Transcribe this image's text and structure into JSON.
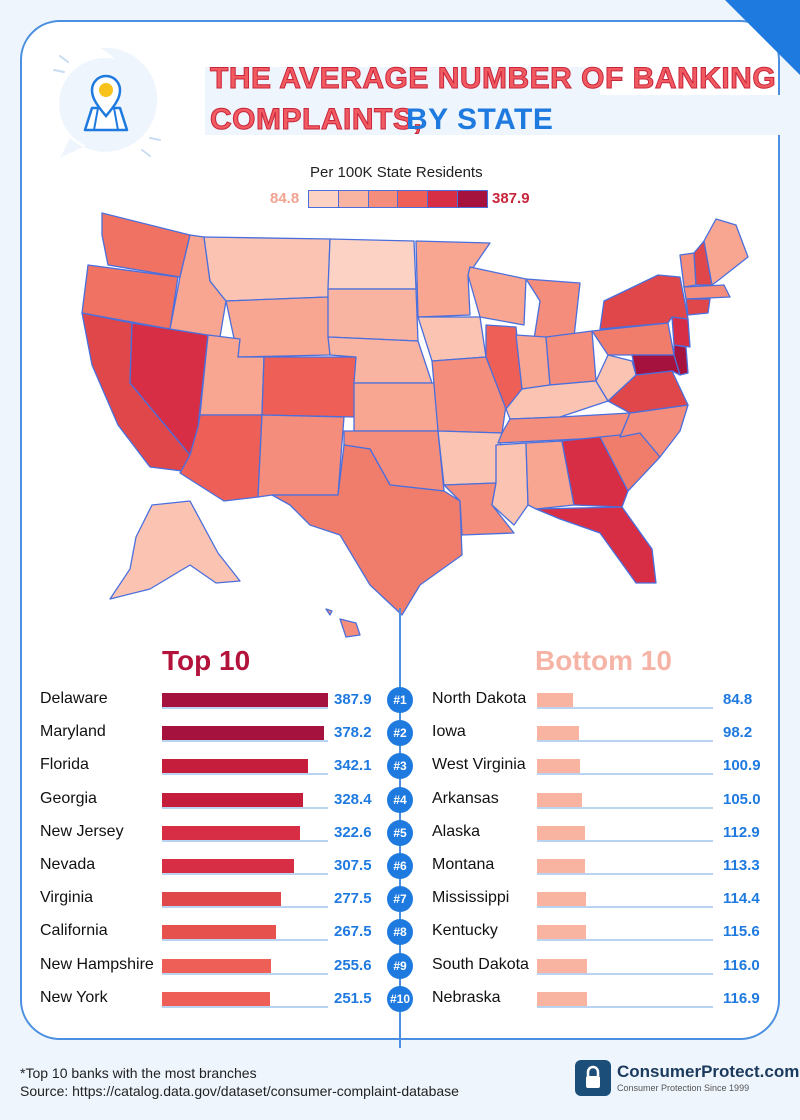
{
  "title": {
    "line1": "THE AVERAGE NUMBER OF BANKING",
    "line2_a": "COMPLAINTS,",
    "line2_b": "BY STATE"
  },
  "legend": {
    "title": "Per 100K State Residents",
    "min": "84.8",
    "max": "387.9",
    "colors": [
      "#fbd2c4",
      "#f8b3a1",
      "#f48d7b",
      "#ee5f58",
      "#d72e45",
      "#a6123e"
    ]
  },
  "colors": {
    "accent": "#1f7ae0",
    "top_heading": "#b3133b",
    "bottom_heading": "#f6b4a7"
  },
  "chart_data": {
    "type": "bar",
    "top": {
      "heading": "Top 10",
      "categories": [
        "Delaware",
        "Maryland",
        "Florida",
        "Georgia",
        "New Jersey",
        "Nevada",
        "Virginia",
        "California",
        "New Hampshire",
        "New York"
      ],
      "values": [
        387.9,
        378.2,
        342.1,
        328.4,
        322.6,
        307.5,
        277.5,
        267.5,
        255.6,
        251.5
      ],
      "labels": [
        "387.9",
        "378.2",
        "342.1",
        "328.4",
        "322.6",
        "307.5",
        "277.5",
        "267.5",
        "255.6",
        "251.5"
      ]
    },
    "bottom": {
      "heading": "Bottom 10",
      "categories": [
        "North Dakota",
        "Iowa",
        "West Virginia",
        "Arkansas",
        "Alaska",
        "Montana",
        "Mississippi",
        "Kentucky",
        "South Dakota",
        "Nebraska"
      ],
      "values": [
        84.8,
        98.2,
        100.9,
        105.0,
        112.9,
        113.3,
        114.4,
        115.6,
        116.0,
        116.9
      ],
      "labels": [
        "84.8",
        "98.2",
        "100.9",
        "105.0",
        "112.9",
        "113.3",
        "114.4",
        "115.6",
        "116.0",
        "116.9"
      ]
    },
    "ranks": [
      "#1",
      "#2",
      "#3",
      "#4",
      "#5",
      "#6",
      "#7",
      "#8",
      "#9",
      "#10"
    ],
    "scale_max": 387.9
  },
  "footer": {
    "note": "*Top 10 banks with the most branches",
    "source": "Source: https://catalog.data.gov/dataset/consumer-complaint-database"
  },
  "logo": {
    "name": "ConsumerProtect.com",
    "tagline": "Consumer Protection Since 1999"
  }
}
